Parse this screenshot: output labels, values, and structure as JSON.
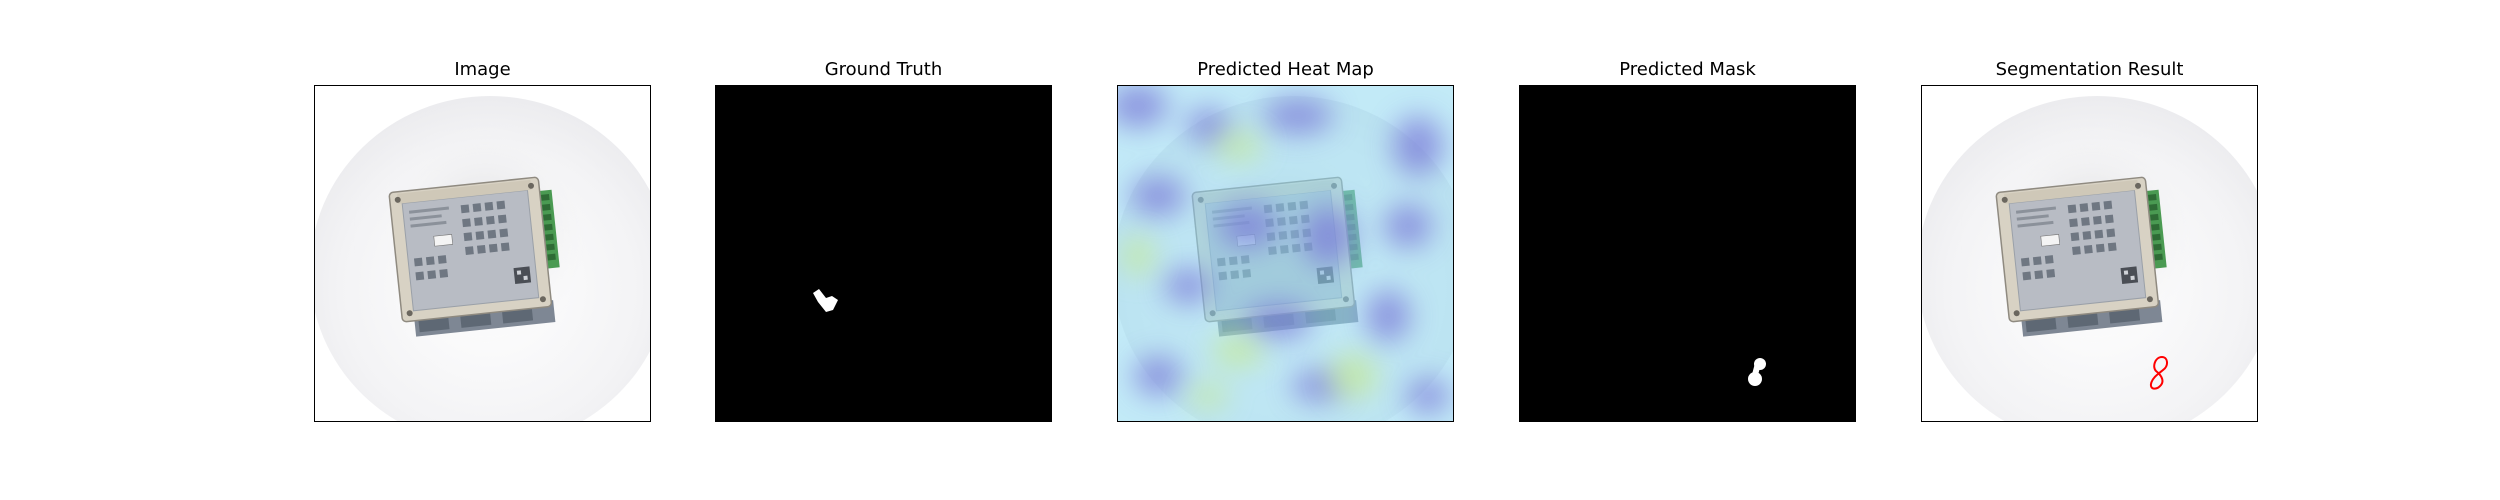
{
  "panels": [
    {
      "title": "Image"
    },
    {
      "title": "Ground Truth"
    },
    {
      "title": "Predicted Heat Map"
    },
    {
      "title": "Predicted Mask"
    },
    {
      "title": "Segmentation Result"
    }
  ],
  "colors": {
    "mask_foreground": "#ffffff",
    "mask_background": "#000000",
    "segmentation_outline": "#ff0000",
    "device_body": "#b8bcc4",
    "device_frame": "#d8d2c4",
    "terminal_green": "#4a9a52",
    "heatmap_base": "#8fd8f0",
    "heatmap_cool": "#7a7ad8",
    "heatmap_warm": "#c8ec7a"
  }
}
